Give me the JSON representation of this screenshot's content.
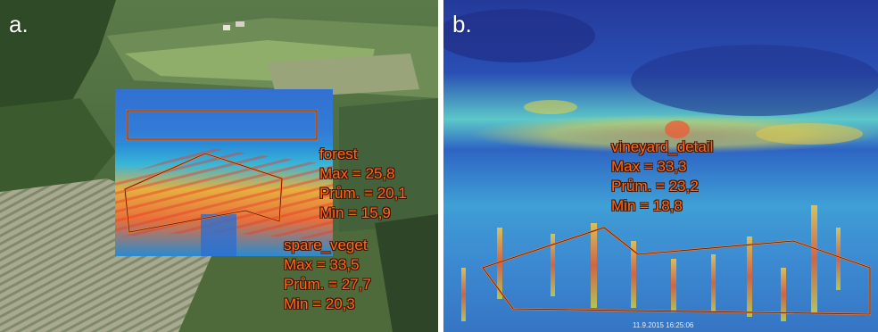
{
  "panel_a": {
    "label": "a.",
    "forest": {
      "name": "forest",
      "max": "Max = 25,8",
      "mean": "Prům. = 20,1",
      "min": "Min = 15,9"
    },
    "spare_veget": {
      "name": "spare_veget",
      "max": "Max = 33,5",
      "mean": "Prům. = 27,7",
      "min": "Min = 20,3"
    }
  },
  "panel_b": {
    "label": "b.",
    "vineyard_detail": {
      "name": "vineyard_detail",
      "max": "Max = 33,3",
      "mean": "Prům. = 23,2",
      "min": "Min = 18,8"
    },
    "timestamp": "11.9.2015 16:25:06"
  },
  "colors": {
    "annotation_text": "#ff6a1a",
    "annotation_outline": "#3a1200",
    "roi_stroke": "#4a1a00"
  }
}
